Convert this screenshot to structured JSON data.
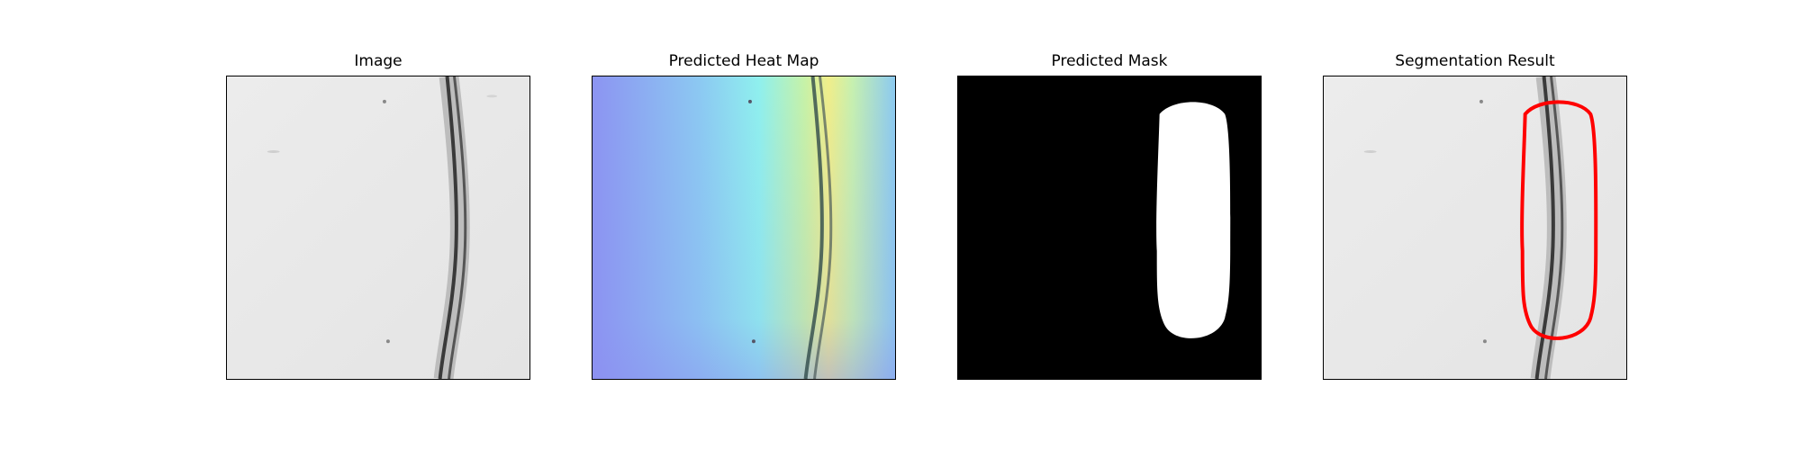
{
  "panels": [
    {
      "title": "Image"
    },
    {
      "title": "Predicted Heat Map"
    },
    {
      "title": "Predicted Mask"
    },
    {
      "title": "Segmentation Result"
    }
  ],
  "colors": {
    "background_gray": "#e9e9e9",
    "crack_dark": "#2a2a2a",
    "heat_low": "#8c8cf0",
    "heat_mid": "#8ff0f0",
    "heat_high": "#f0ee8a",
    "mask_bg": "#000000",
    "mask_fg": "#ffffff",
    "contour": "#ff0000"
  }
}
